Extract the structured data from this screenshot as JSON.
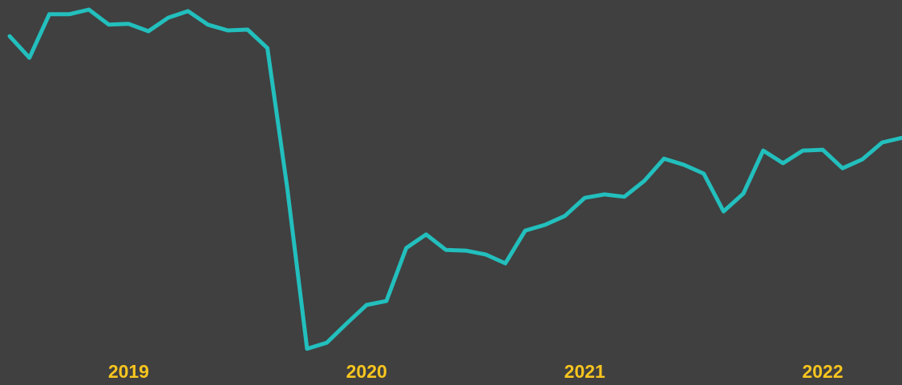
{
  "chart_data": {
    "type": "line",
    "categories": [
      null,
      null,
      null,
      null,
      null,
      null,
      "2019",
      null,
      null,
      null,
      null,
      null,
      null,
      null,
      null,
      null,
      null,
      null,
      "2020",
      null,
      null,
      null,
      null,
      null,
      null,
      null,
      null,
      null,
      null,
      "2021",
      null,
      null,
      null,
      null,
      null,
      null,
      null,
      null,
      null,
      null,
      null,
      "2022",
      null,
      null,
      null,
      null
    ],
    "series": [
      {
        "color": "#22bfbd",
        "values": [
          90.6,
          85.0,
          96.3,
          96.3,
          97.5,
          93.6,
          93.8,
          91.9,
          95.4,
          97.1,
          93.6,
          92.1,
          92.3,
          87.5,
          51.1,
          9.4,
          11.0,
          16.0,
          20.8,
          21.8,
          35.6,
          39.1,
          35.1,
          34.9,
          33.9,
          31.6,
          40.1,
          41.6,
          43.9,
          48.6,
          49.5,
          48.9,
          53.0,
          58.8,
          57.2,
          54.9,
          45.1,
          49.7,
          60.9,
          57.6,
          60.9,
          61.1,
          56.3,
          58.6,
          63.0,
          64.2
        ]
      }
    ],
    "ylim": [
      0,
      100
    ]
  }
}
